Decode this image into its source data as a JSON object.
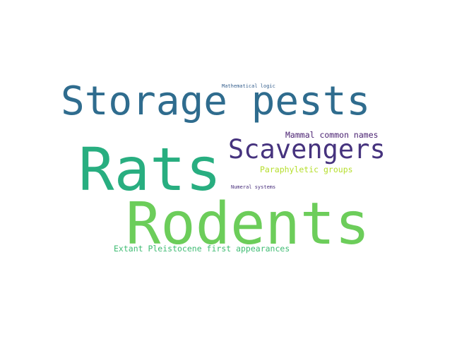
{
  "word_cloud": {
    "words": [
      {
        "id": "storage",
        "text": "Storage pests",
        "color": "#2f6c8e"
      },
      {
        "id": "rats",
        "text": "Rats",
        "color": "#28ae80"
      },
      {
        "id": "rodents",
        "text": "Rodents",
        "color": "#6ccd5a"
      },
      {
        "id": "scavengers",
        "text": "Scavengers",
        "color": "#46337e"
      },
      {
        "id": "mammal",
        "text": "Mammal common names",
        "color": "#481f70"
      },
      {
        "id": "paraphyletic",
        "text": "Paraphyletic groups",
        "color": "#b5de2b"
      },
      {
        "id": "extant",
        "text": "Extant Pleistocene first appearances",
        "color": "#3fbc73"
      },
      {
        "id": "mathlogic",
        "text": "Mathematical logic",
        "color": "#355f8d"
      },
      {
        "id": "numeral",
        "text": "Numeral systems",
        "color": "#472d7b"
      }
    ]
  }
}
